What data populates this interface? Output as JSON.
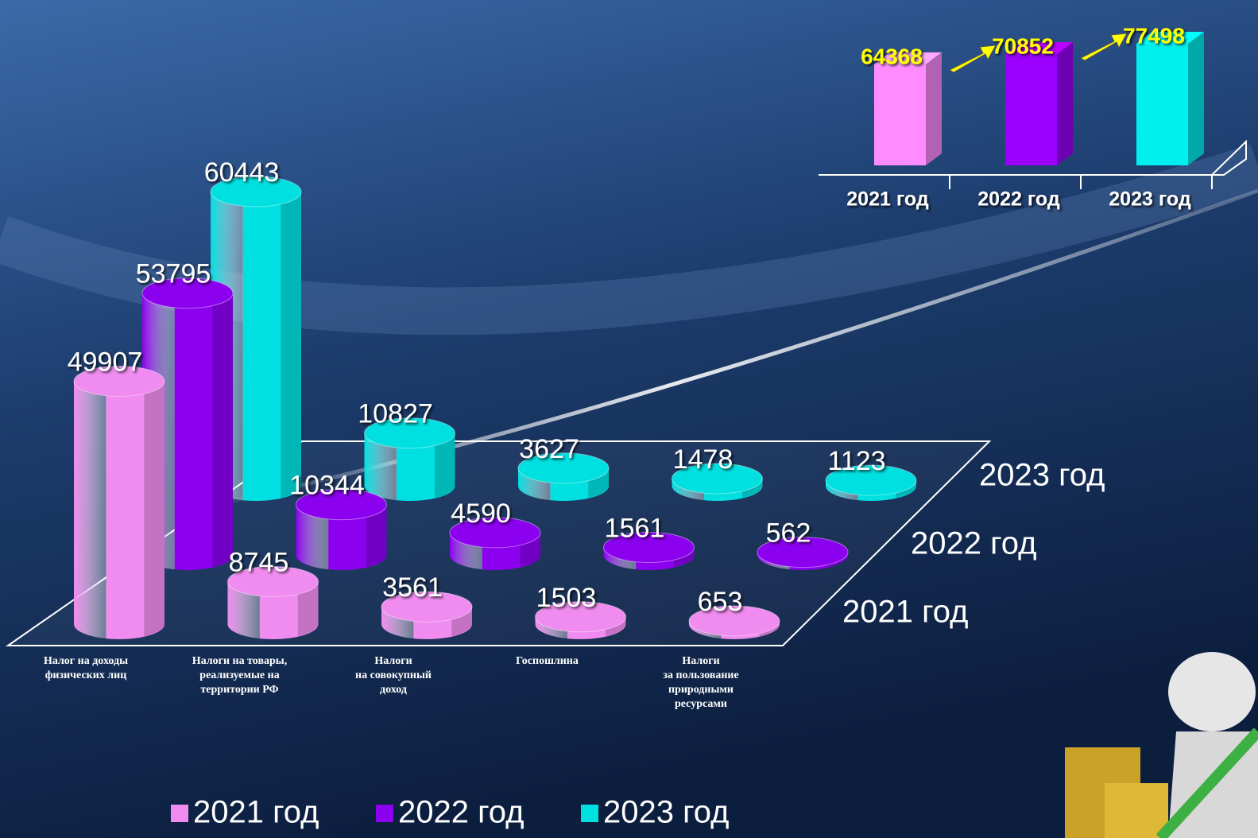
{
  "chart_data": [
    {
      "type": "bar3d",
      "categories": [
        "Налог на доходы\nфизических лиц",
        "Налоги на товары,\nреализуемые на\nтерритории РФ",
        "Налоги\nна совокупный\nдоход",
        "Госпошлина",
        "Налоги\nза пользование\nприродными\nресурсами"
      ],
      "series": [
        {
          "name": "2021 год",
          "color": "#f08cf0",
          "values": [
            49907,
            8745,
            3561,
            1503,
            653
          ]
        },
        {
          "name": "2022 год",
          "color": "#8c00f0",
          "values": [
            53795,
            10344,
            4590,
            1561,
            562
          ]
        },
        {
          "name": "2023 год",
          "color": "#00e0e0",
          "values": [
            60443,
            10827,
            3627,
            1478,
            1123
          ]
        }
      ],
      "legend": "bottom"
    },
    {
      "type": "bar3d-inset",
      "categories": [
        "2021 год",
        "2022 год",
        "2023 год"
      ],
      "values": [
        64368,
        70852,
        77498
      ],
      "colors": [
        "#ff8cff",
        "#9b00ff",
        "#00f0f0"
      ]
    }
  ]
}
